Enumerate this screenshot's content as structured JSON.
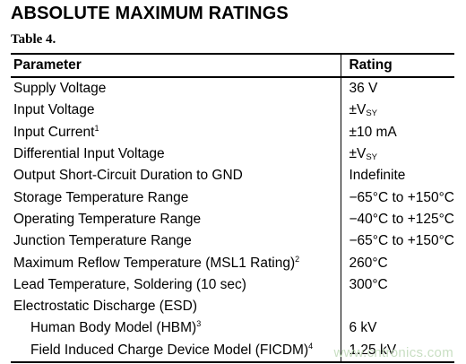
{
  "heading": "ABSOLUTE MAXIMUM RATINGS",
  "table_caption": "Table 4.",
  "columns": {
    "parameter": "Parameter",
    "rating": "Rating"
  },
  "rows": [
    {
      "parameter": "Supply Voltage",
      "note": "",
      "rating": "36 V",
      "rating_sub": ""
    },
    {
      "parameter": "Input Voltage",
      "note": "",
      "rating": "±V",
      "rating_sub": "SY"
    },
    {
      "parameter": "Input Current",
      "note": "1",
      "rating": "±10 mA",
      "rating_sub": ""
    },
    {
      "parameter": "Differential Input Voltage",
      "note": "",
      "rating": "±V",
      "rating_sub": "SY"
    },
    {
      "parameter": "Output Short-Circuit Duration to GND",
      "note": "",
      "rating": "Indefinite",
      "rating_sub": ""
    },
    {
      "parameter": "Storage Temperature Range",
      "note": "",
      "rating": "−65°C to +150°C",
      "rating_sub": ""
    },
    {
      "parameter": "Operating Temperature Range",
      "note": "",
      "rating": "−40°C to +125°C",
      "rating_sub": ""
    },
    {
      "parameter": "Junction Temperature Range",
      "note": "",
      "rating": "−65°C to +150°C",
      "rating_sub": ""
    },
    {
      "parameter": "Maximum Reflow Temperature (MSL1 Rating)",
      "note": "2",
      "rating": "260°C",
      "rating_sub": ""
    },
    {
      "parameter": "Lead Temperature, Soldering (10 sec)",
      "note": "",
      "rating": "300°C",
      "rating_sub": ""
    },
    {
      "parameter": "Electrostatic Discharge (ESD)",
      "note": "",
      "rating": "",
      "rating_sub": ""
    },
    {
      "parameter": "Human Body Model (HBM)",
      "note": "3",
      "rating": "6 kV",
      "rating_sub": "",
      "indent": true
    },
    {
      "parameter": "Field Induced Charge Device Model (FICDM)",
      "note": "4",
      "rating": "1.25 kV",
      "rating_sub": "",
      "indent": true
    }
  ],
  "watermark": "www.cntronics.com"
}
